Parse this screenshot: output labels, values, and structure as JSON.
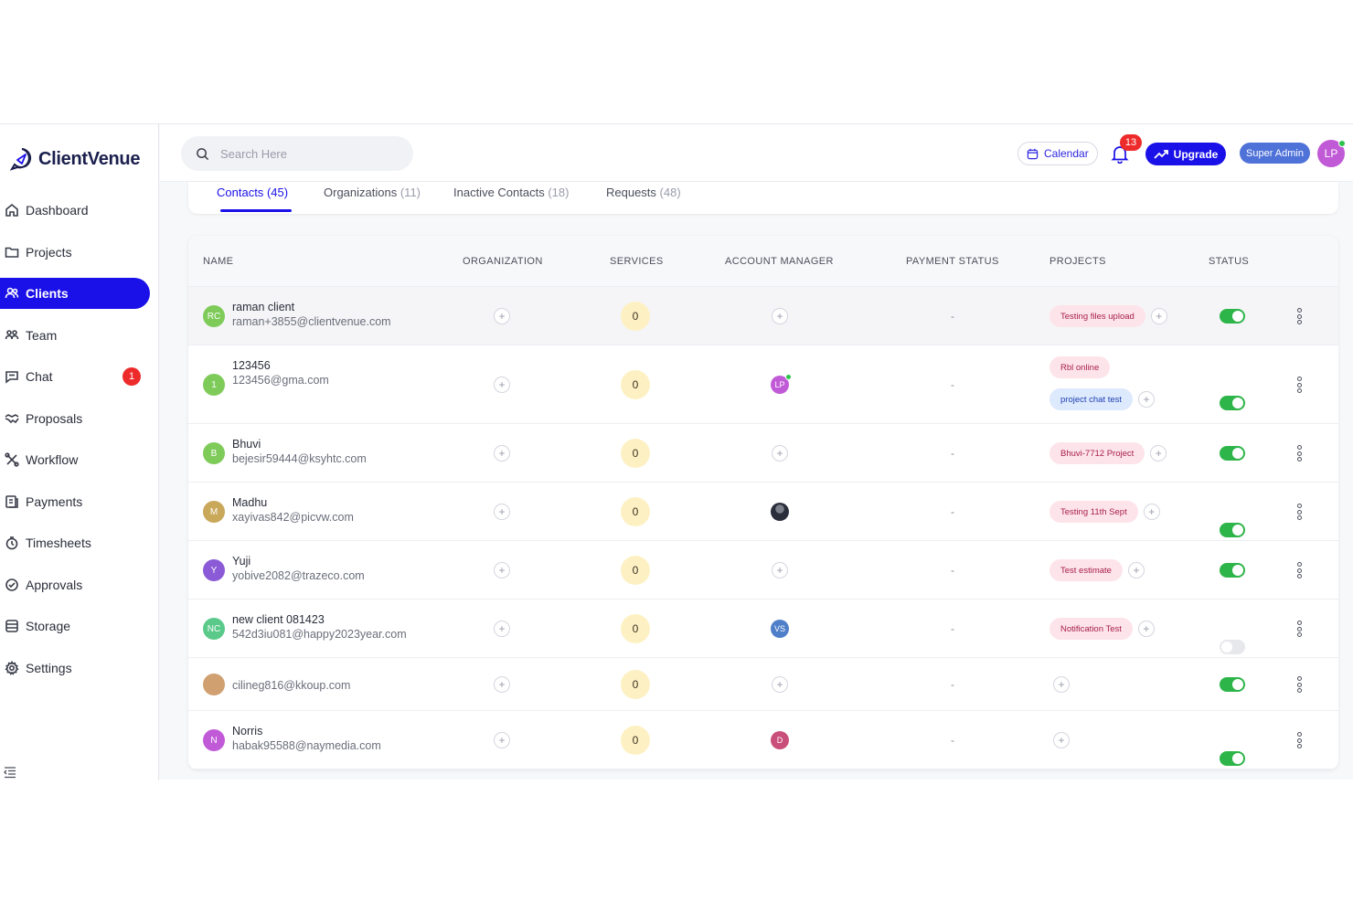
{
  "brand": {
    "name": "ClientVenue",
    "primary": "#1a10e8"
  },
  "sidebar": {
    "items": [
      {
        "label": "Dashboard",
        "icon": "home-icon"
      },
      {
        "label": "Projects",
        "icon": "folder-icon"
      },
      {
        "label": "Clients",
        "icon": "users-icon",
        "active": true
      },
      {
        "label": "Team",
        "icon": "team-icon"
      },
      {
        "label": "Chat",
        "icon": "chat-icon",
        "badge": "1"
      },
      {
        "label": "Proposals",
        "icon": "handshake-icon"
      },
      {
        "label": "Workflow",
        "icon": "workflow-icon"
      },
      {
        "label": "Payments",
        "icon": "payments-icon"
      },
      {
        "label": "Timesheets",
        "icon": "clock-icon"
      },
      {
        "label": "Approvals",
        "icon": "check-circle-icon"
      },
      {
        "label": "Storage",
        "icon": "database-icon"
      },
      {
        "label": "Settings",
        "icon": "gear-icon"
      }
    ]
  },
  "topbar": {
    "search_placeholder": "Search Here",
    "calendar_label": "Calendar",
    "notifications_count": "13",
    "upgrade_label": "Upgrade",
    "role": "Super Admin",
    "user_initials": "LP"
  },
  "tabs": [
    {
      "label": "Contacts",
      "count": "(45)",
      "active": true
    },
    {
      "label": "Organizations",
      "count": "(11)"
    },
    {
      "label": "Inactive Contacts",
      "count": "(18)"
    },
    {
      "label": "Requests",
      "count": "(48)"
    }
  ],
  "table": {
    "headers": {
      "name": "NAME",
      "organization": "ORGANIZATION",
      "services": "SERVICES",
      "account_manager": "ACCOUNT MANAGER",
      "payment_status": "PAYMENT STATUS",
      "projects": "PROJECTS",
      "status": "STATUS"
    },
    "rows": [
      {
        "initials": "RC",
        "avatar_color": "#7ecb5a",
        "name": "raman client",
        "email": "raman+3855@clientvenue.com",
        "services": "0",
        "manager": null,
        "payment": "-",
        "projects": [
          {
            "name": "Testing files upload",
            "color": "pink"
          }
        ],
        "active": true
      },
      {
        "initials": "1",
        "avatar_color": "#7ecb5a",
        "name": "123456",
        "email": "123456@gma.com",
        "services": "0",
        "manager": {
          "initials": "LP",
          "color": "#c05ad6",
          "online": true
        },
        "payment": "-",
        "projects": [
          {
            "name": "Rbl online",
            "color": "pink"
          },
          {
            "name": "project chat test",
            "color": "blue"
          }
        ],
        "active": true
      },
      {
        "initials": "B",
        "avatar_color": "#7ecb5a",
        "name": "Bhuvi",
        "email": "bejesir59444@ksyhtc.com",
        "services": "0",
        "manager": null,
        "payment": "-",
        "projects": [
          {
            "name": "Bhuvi-7712 Project",
            "color": "pink"
          }
        ],
        "active": true
      },
      {
        "initials": "M",
        "avatar_color": "#c9a85a",
        "name": "Madhu",
        "email": "xayivas842@picvw.com",
        "services": "0",
        "manager": {
          "initials": "",
          "color": "#2a2d3a",
          "photo": true
        },
        "payment": "-",
        "projects": [
          {
            "name": "Testing 11th Sept",
            "color": "pink"
          }
        ],
        "active": true
      },
      {
        "initials": "Y",
        "avatar_color": "#8b5ad6",
        "name": "Yuji",
        "email": "yobive2082@trazeco.com",
        "services": "0",
        "manager": null,
        "payment": "-",
        "projects": [
          {
            "name": "Test estimate",
            "color": "pink"
          }
        ],
        "active": true
      },
      {
        "initials": "NC",
        "avatar_color": "#5ac98a",
        "name": "new client 081423",
        "email": "542d3iu081@happy2023year.com",
        "services": "0",
        "manager": {
          "initials": "VS",
          "color": "#4f7fc9"
        },
        "payment": "-",
        "projects": [
          {
            "name": "Notification Test",
            "color": "pink"
          }
        ],
        "active": false
      },
      {
        "initials": "",
        "avatar_color": "#d0a070",
        "name": "",
        "email": "cilineg816@kkoup.com",
        "services": "0",
        "manager": null,
        "payment": "-",
        "projects": [],
        "active": true
      },
      {
        "initials": "N",
        "avatar_color": "#c05ad6",
        "name": "Norris",
        "email": "habak95588@naymedia.com",
        "services": "0",
        "manager": {
          "initials": "D",
          "color": "#c94f7a"
        },
        "payment": "-",
        "projects": [],
        "active": true
      }
    ]
  }
}
